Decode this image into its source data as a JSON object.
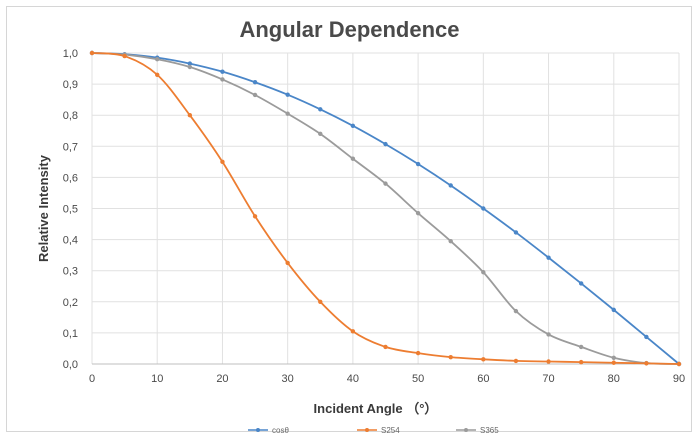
{
  "chart_data": {
    "type": "line",
    "title": "Angular Dependence",
    "xlabel": "Incident Angle （°）",
    "ylabel": "Relative Intensity",
    "xlim": [
      0,
      90
    ],
    "ylim": [
      0,
      1.0
    ],
    "grid": true,
    "legend_position": "bottom",
    "x_ticks": [
      0,
      10,
      20,
      30,
      40,
      50,
      60,
      70,
      80,
      90
    ],
    "y_tick_labels": [
      "0,0",
      "0,1",
      "0,2",
      "0,3",
      "0,4",
      "0,5",
      "0,6",
      "0,7",
      "0,8",
      "0,9",
      "1,0"
    ],
    "x": [
      0,
      5,
      10,
      15,
      20,
      25,
      30,
      35,
      40,
      45,
      50,
      55,
      60,
      65,
      70,
      75,
      80,
      85,
      90
    ],
    "series": [
      {
        "name": "cosθ",
        "color": "#4a86c8",
        "values": [
          1.0,
          0.996,
          0.985,
          0.966,
          0.94,
          0.906,
          0.866,
          0.819,
          0.766,
          0.707,
          0.643,
          0.574,
          0.5,
          0.423,
          0.342,
          0.259,
          0.174,
          0.087,
          0.0
        ]
      },
      {
        "name": "S254",
        "color": "#ed7d31",
        "values": [
          1.0,
          0.99,
          0.93,
          0.8,
          0.65,
          0.475,
          0.325,
          0.2,
          0.105,
          0.055,
          0.035,
          0.022,
          0.015,
          0.01,
          0.008,
          0.006,
          0.004,
          0.002,
          0.0
        ]
      },
      {
        "name": "S365",
        "color": "#9b9b9b",
        "values": [
          1.0,
          0.995,
          0.98,
          0.955,
          0.915,
          0.865,
          0.805,
          0.74,
          0.66,
          0.58,
          0.485,
          0.395,
          0.295,
          0.17,
          0.095,
          0.055,
          0.02,
          0.003,
          0.0
        ]
      }
    ]
  }
}
